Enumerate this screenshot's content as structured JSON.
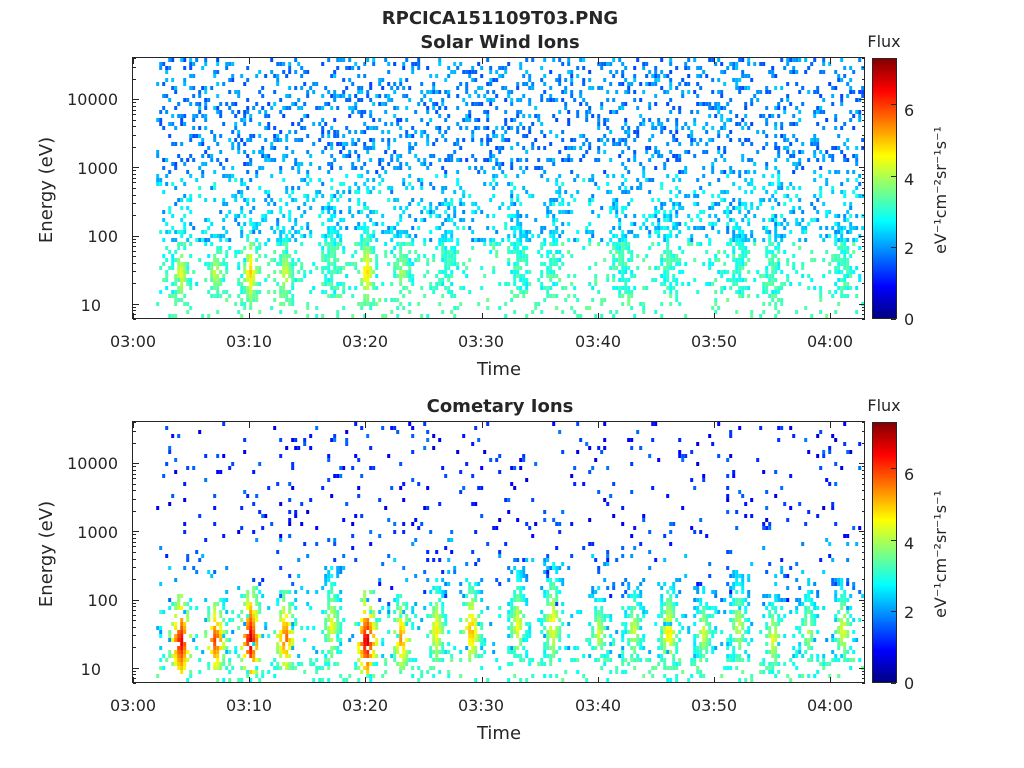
{
  "figure": {
    "title": "RPCICA151109T03.PNG"
  },
  "colormap": {
    "name": "jet",
    "stops": [
      "#00007f",
      "#0000ff",
      "#007fff",
      "#00ffff",
      "#7fff7f",
      "#ffff00",
      "#ff7f00",
      "#ff0000",
      "#7f0000"
    ]
  },
  "chart_data": [
    {
      "type": "heatmap",
      "title": "Solar Wind Ions",
      "xlabel": "Time",
      "ylabel": "Energy (eV)",
      "yscale": "log",
      "xlim": [
        "03:00",
        "04:03"
      ],
      "ylim": [
        6,
        40000
      ],
      "x_ticks": [
        "03:00",
        "03:10",
        "03:20",
        "03:30",
        "03:40",
        "03:50",
        "04:00"
      ],
      "y_ticks": [
        "10",
        "100",
        "1000",
        "10000"
      ],
      "colorbar": {
        "label": "Flux",
        "units": "eV⁻¹cm⁻²sr⁻¹s⁻¹",
        "range": [
          0,
          7.3
        ],
        "ticks": [
          "0",
          "2",
          "4",
          "6"
        ]
      },
      "data_start": "03:02",
      "bursts": [
        {
          "time": "03:04",
          "energy_low": 12,
          "energy_high": 130,
          "peak_flux": 4.6
        },
        {
          "time": "03:07",
          "energy_low": 14,
          "energy_high": 110,
          "peak_flux": 4.4
        },
        {
          "time": "03:10",
          "energy_low": 12,
          "energy_high": 150,
          "peak_flux": 5.0
        },
        {
          "time": "03:13",
          "energy_low": 12,
          "energy_high": 130,
          "peak_flux": 4.5
        },
        {
          "time": "03:17",
          "energy_low": 14,
          "energy_high": 400,
          "peak_flux": 3.6
        },
        {
          "time": "03:20",
          "energy_low": 12,
          "energy_high": 150,
          "peak_flux": 5.0
        },
        {
          "time": "03:23",
          "energy_low": 14,
          "energy_high": 130,
          "peak_flux": 4.2
        },
        {
          "time": "03:27",
          "energy_low": 14,
          "energy_high": 300,
          "peak_flux": 3.4
        },
        {
          "time": "03:33",
          "energy_low": 14,
          "energy_high": 400,
          "peak_flux": 3.2
        },
        {
          "time": "03:36",
          "energy_low": 14,
          "energy_high": 300,
          "peak_flux": 3.3
        },
        {
          "time": "03:42",
          "energy_low": 14,
          "energy_high": 300,
          "peak_flux": 3.2
        },
        {
          "time": "03:46",
          "energy_low": 14,
          "energy_high": 300,
          "peak_flux": 3.6
        },
        {
          "time": "03:52",
          "energy_low": 14,
          "energy_high": 300,
          "peak_flux": 3.2
        },
        {
          "time": "03:55",
          "energy_low": 12,
          "energy_high": 200,
          "peak_flux": 3.4
        },
        {
          "time": "04:01",
          "energy_low": 14,
          "energy_high": 200,
          "peak_flux": 3.4
        }
      ]
    },
    {
      "type": "heatmap",
      "title": "Cometary Ions",
      "xlabel": "Time",
      "ylabel": "Energy (eV)",
      "yscale": "log",
      "xlim": [
        "03:00",
        "04:03"
      ],
      "ylim": [
        6,
        40000
      ],
      "x_ticks": [
        "03:00",
        "03:10",
        "03:20",
        "03:30",
        "03:40",
        "03:50",
        "04:00"
      ],
      "y_ticks": [
        "10",
        "100",
        "1000",
        "10000"
      ],
      "colorbar": {
        "label": "Flux",
        "units": "eV⁻¹cm⁻²sr⁻¹s⁻¹",
        "range": [
          0,
          7.3
        ],
        "ticks": [
          "0",
          "2",
          "4",
          "6"
        ]
      },
      "data_start": "03:02",
      "bursts": [
        {
          "time": "03:04",
          "energy_low": 10,
          "energy_high": 120,
          "peak_flux": 6.8
        },
        {
          "time": "03:07",
          "energy_low": 12,
          "energy_high": 100,
          "peak_flux": 6.3
        },
        {
          "time": "03:10",
          "energy_low": 10,
          "energy_high": 150,
          "peak_flux": 6.9
        },
        {
          "time": "03:13",
          "energy_low": 12,
          "energy_high": 130,
          "peak_flux": 6.0
        },
        {
          "time": "03:17",
          "energy_low": 14,
          "energy_high": 300,
          "peak_flux": 4.6
        },
        {
          "time": "03:20",
          "energy_low": 10,
          "energy_high": 130,
          "peak_flux": 7.0
        },
        {
          "time": "03:23",
          "energy_low": 12,
          "energy_high": 120,
          "peak_flux": 5.6
        },
        {
          "time": "03:26",
          "energy_low": 14,
          "energy_high": 200,
          "peak_flux": 4.8
        },
        {
          "time": "03:29",
          "energy_low": 14,
          "energy_high": 200,
          "peak_flux": 5.4
        },
        {
          "time": "03:33",
          "energy_low": 14,
          "energy_high": 300,
          "peak_flux": 4.6
        },
        {
          "time": "03:36",
          "energy_low": 14,
          "energy_high": 400,
          "peak_flux": 4.8
        },
        {
          "time": "03:40",
          "energy_low": 14,
          "energy_high": 150,
          "peak_flux": 4.4
        },
        {
          "time": "03:43",
          "energy_low": 14,
          "energy_high": 200,
          "peak_flux": 4.4
        },
        {
          "time": "03:46",
          "energy_low": 12,
          "energy_high": 200,
          "peak_flux": 5.0
        },
        {
          "time": "03:49",
          "energy_low": 14,
          "energy_high": 150,
          "peak_flux": 4.4
        },
        {
          "time": "03:52",
          "energy_low": 14,
          "energy_high": 300,
          "peak_flux": 4.4
        },
        {
          "time": "03:55",
          "energy_low": 12,
          "energy_high": 120,
          "peak_flux": 4.6
        },
        {
          "time": "03:58",
          "energy_low": 14,
          "energy_high": 200,
          "peak_flux": 4.2
        },
        {
          "time": "04:01",
          "energy_low": 14,
          "energy_high": 200,
          "peak_flux": 4.6
        }
      ]
    }
  ]
}
